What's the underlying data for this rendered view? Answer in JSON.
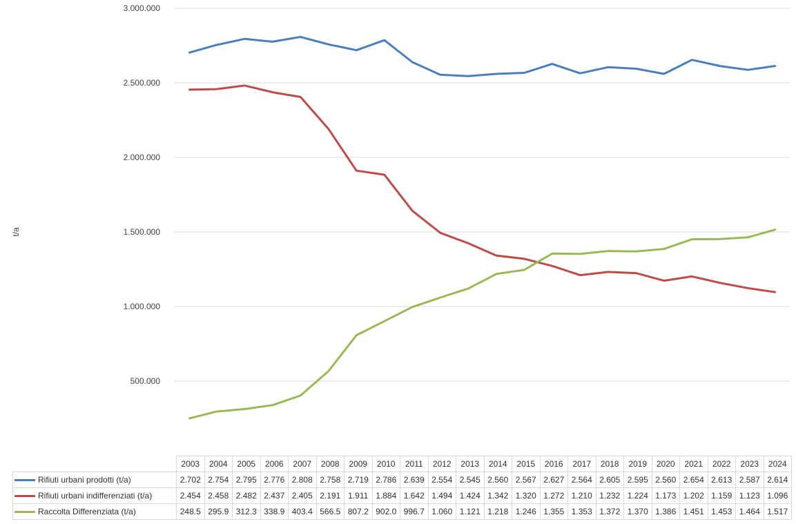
{
  "chart_data": {
    "type": "line",
    "title": "",
    "ylabel": "t/a",
    "xlabel": "",
    "ylim": [
      0,
      3000000
    ],
    "yticks": [
      0,
      500000,
      1000000,
      1500000,
      2000000,
      2500000,
      3000000
    ],
    "ytick_labels": [
      "-",
      "500.000",
      "1.000.000",
      "1.500.000",
      "2.000.000",
      "2.500.000",
      "3.000.000"
    ],
    "grid": "horizontal",
    "legend": "data table below chart",
    "categories": [
      "2003",
      "2004",
      "2005",
      "2006",
      "2007",
      "2008",
      "2009",
      "2010",
      "2011",
      "2012",
      "2013",
      "2014",
      "2015",
      "2016",
      "2017",
      "2018",
      "2019",
      "2020",
      "2021",
      "2022",
      "2023",
      "2024"
    ],
    "series": [
      {
        "name": "Rifiuti urbani prodotti (t/a)",
        "color": "#4A7EBB",
        "values": [
          2702000,
          2754000,
          2795000,
          2776000,
          2808000,
          2758000,
          2719000,
          2786000,
          2639000,
          2554000,
          2545000,
          2560000,
          2567000,
          2627000,
          2564000,
          2605000,
          2595000,
          2560000,
          2654000,
          2613000,
          2587000,
          2614000
        ],
        "labels": [
          "2.702",
          "2.754",
          "2.795",
          "2.776",
          "2.808",
          "2.758",
          "2.719",
          "2.786",
          "2.639",
          "2.554",
          "2.545",
          "2.560",
          "2.567",
          "2.627",
          "2.564",
          "2.605",
          "2.595",
          "2.560",
          "2.654",
          "2.613",
          "2.587",
          "2.614"
        ]
      },
      {
        "name": "Rifiuti urbani indifferenziati (t/a)",
        "color": "#BE4B48",
        "values": [
          2454000,
          2458000,
          2482000,
          2437000,
          2405000,
          2191000,
          1911000,
          1884000,
          1642000,
          1494000,
          1424000,
          1342000,
          1320000,
          1272000,
          1210000,
          1232000,
          1224000,
          1173000,
          1202000,
          1159000,
          1123000,
          1096000
        ],
        "labels": [
          "2.454",
          "2.458",
          "2.482",
          "2.437",
          "2.405",
          "2.191",
          "1.911",
          "1.884",
          "1.642",
          "1.494",
          "1.424",
          "1.342",
          "1.320",
          "1.272",
          "1.210",
          "1.232",
          "1.224",
          "1.173",
          "1.202",
          "1.159",
          "1.123",
          "1.096"
        ]
      },
      {
        "name": "Raccolta Differenziata (t/a)",
        "color": "#98B954",
        "values": [
          248500,
          295900,
          312300,
          338900,
          403400,
          566500,
          807200,
          902000,
          996700,
          1060000,
          1121000,
          1218000,
          1246000,
          1355000,
          1353000,
          1372000,
          1370000,
          1386000,
          1451000,
          1453000,
          1464000,
          1517000
        ],
        "labels": [
          "248.5",
          "295.9",
          "312.3",
          "338.9",
          "403.4",
          "566.5",
          "807.2",
          "902.0",
          "996.7",
          "1.060",
          "1.121",
          "1.218",
          "1.246",
          "1.355",
          "1.353",
          "1.372",
          "1.370",
          "1.386",
          "1.451",
          "1.453",
          "1.464",
          "1.517"
        ]
      }
    ]
  }
}
